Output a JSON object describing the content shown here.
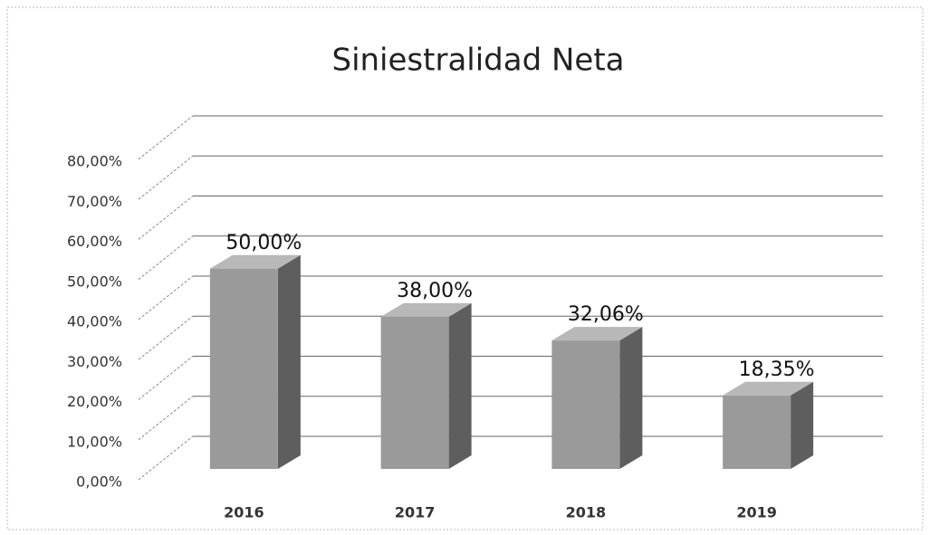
{
  "chart_data": {
    "type": "bar",
    "title": "Siniestralidad Neta",
    "categories": [
      "2016",
      "2017",
      "2018",
      "2019"
    ],
    "values": [
      50,
      38,
      32.06,
      18.35
    ],
    "value_labels": [
      "50,00%",
      "38,00%",
      "32,06%",
      "18,35%"
    ],
    "color": "#9a9a9a",
    "ylim": [
      0,
      80
    ],
    "yticks": [
      {
        "value": 0,
        "label": "0,00%"
      },
      {
        "value": 10,
        "label": "10,00%"
      },
      {
        "value": 20,
        "label": "20,00%"
      },
      {
        "value": 30,
        "label": "30,00%"
      },
      {
        "value": 40,
        "label": "40,00%"
      },
      {
        "value": 50,
        "label": "50,00%"
      },
      {
        "value": 60,
        "label": "60,00%"
      },
      {
        "value": 70,
        "label": "70,00%"
      },
      {
        "value": 80,
        "label": "80,00%"
      }
    ],
    "grid": true
  }
}
